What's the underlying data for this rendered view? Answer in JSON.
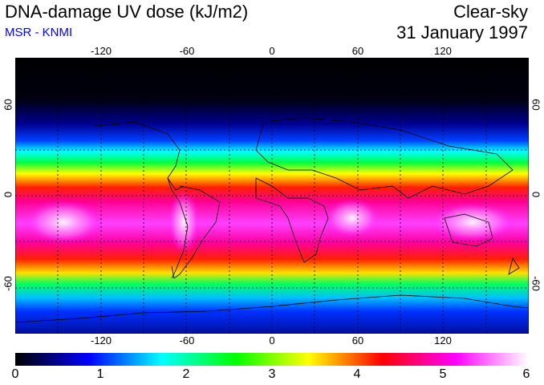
{
  "header": {
    "title": "DNA-damage UV dose (kJ/m2)",
    "source": "MSR - KNMI",
    "sky_condition": "Clear-sky",
    "date": "31 January 1997"
  },
  "map": {
    "lon_ticks": [
      "-120",
      "-60",
      "0",
      "60",
      "120"
    ],
    "lat_ticks": [
      "60",
      "0",
      "-60"
    ],
    "lon_range": [
      -180,
      180
    ],
    "lat_range": [
      -90,
      90
    ],
    "gridlines": "dashed every 30 degrees"
  },
  "colorbar": {
    "ticks": [
      "0",
      "1",
      "2",
      "3",
      "4",
      "5",
      "6"
    ],
    "range": [
      0,
      6
    ],
    "colors": [
      "#000000",
      "#0000ff",
      "#00ffff",
      "#00ff00",
      "#ffff00",
      "#ff0000",
      "#ff00ff",
      "#ffffff"
    ]
  },
  "colors": {
    "source_text": "#0000ff"
  }
}
